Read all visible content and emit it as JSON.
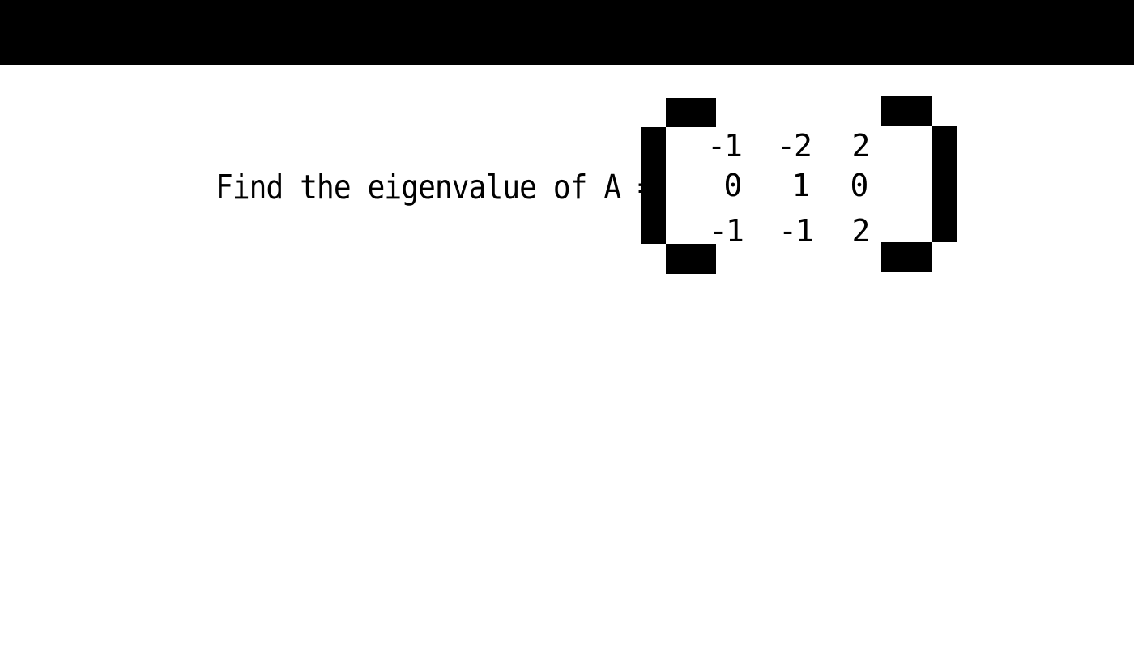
{
  "question": {
    "text": "Find the eigenvalue of A ="
  },
  "matrix": {
    "rows": [
      [
        "-1",
        "-2",
        "2"
      ],
      [
        "0",
        "1",
        "0"
      ],
      [
        "-1",
        "-1",
        "2"
      ]
    ]
  }
}
